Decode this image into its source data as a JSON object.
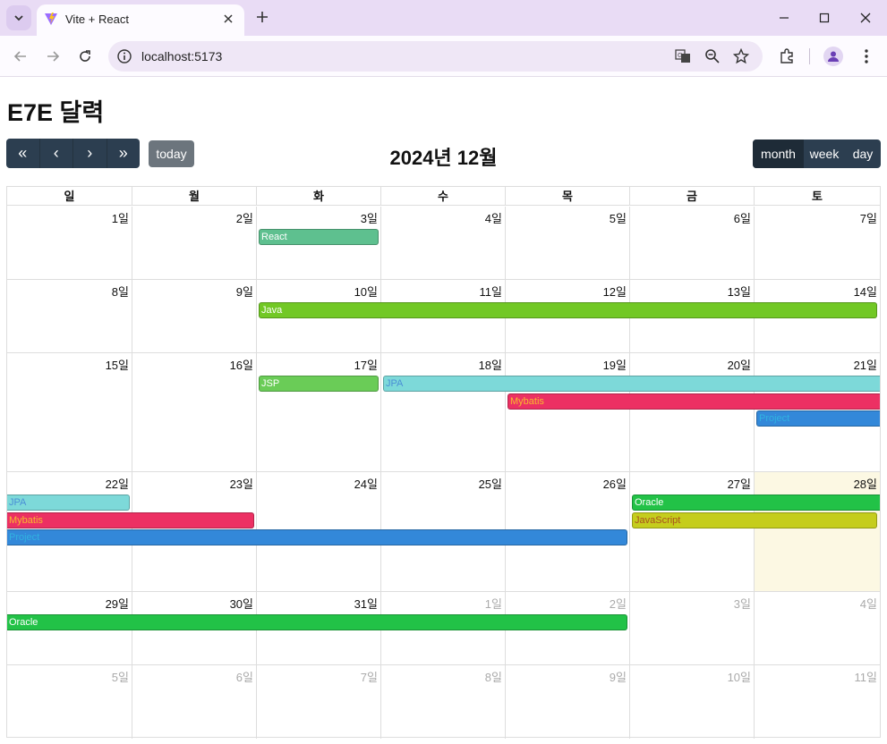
{
  "browser": {
    "tab_title": "Vite + React",
    "url": "localhost:5173",
    "icons": [
      "tab-search-icon",
      "vite-favicon",
      "close-icon",
      "plus-icon",
      "minimize-icon",
      "maximize-icon",
      "window-close-icon",
      "back-icon",
      "forward-icon",
      "reload-icon",
      "site-info-icon",
      "translate-icon",
      "zoom-icon",
      "bookmark-star-icon",
      "extensions-icon",
      "profile-icon",
      "more-menu-icon"
    ]
  },
  "page": {
    "title": "E7E 달력"
  },
  "toolbar": {
    "prev_year": "«",
    "prev": "‹",
    "next": "›",
    "next_year": "»",
    "today_label": "today",
    "title": "2024년 12월",
    "views": [
      {
        "label": "month",
        "active": true
      },
      {
        "label": "week",
        "active": false
      },
      {
        "label": "day",
        "active": false
      }
    ]
  },
  "calendar": {
    "day_headers": [
      "일",
      "월",
      "화",
      "수",
      "목",
      "금",
      "토"
    ],
    "weeks": [
      [
        "1일",
        "2일",
        "3일",
        "4일",
        "5일",
        "6일",
        "7일"
      ],
      [
        "8일",
        "9일",
        "10일",
        "11일",
        "12일",
        "13일",
        "14일"
      ],
      [
        "15일",
        "16일",
        "17일",
        "18일",
        "19일",
        "20일",
        "21일"
      ],
      [
        "22일",
        "23일",
        "24일",
        "25일",
        "26일",
        "27일",
        "28일"
      ],
      [
        "29일",
        "30일",
        "31일",
        "1일",
        "2일",
        "3일",
        "4일"
      ],
      [
        "5일",
        "6일",
        "7일",
        "8일",
        "9일",
        "10일",
        "11일"
      ]
    ],
    "other_month": [
      [
        false,
        false,
        false,
        false,
        false,
        false,
        false
      ],
      [
        false,
        false,
        false,
        false,
        false,
        false,
        false
      ],
      [
        false,
        false,
        false,
        false,
        false,
        false,
        false
      ],
      [
        false,
        false,
        false,
        false,
        false,
        false,
        false
      ],
      [
        false,
        false,
        false,
        true,
        true,
        true,
        true
      ],
      [
        true,
        true,
        true,
        true,
        true,
        true,
        true
      ]
    ],
    "today": {
      "week": 3,
      "day": 6
    },
    "events": [
      {
        "title": "React",
        "week": 0,
        "start": 2,
        "end": 2,
        "lane": 0,
        "bg": "#5ec08f",
        "fg": "#ffffff"
      },
      {
        "title": "Java",
        "week": 1,
        "start": 2,
        "end": 6,
        "lane": 0,
        "bg": "#72c825",
        "fg": "#ffffff"
      },
      {
        "title": "JSP",
        "week": 2,
        "start": 2,
        "end": 2,
        "lane": 0,
        "bg": "#6acc57",
        "fg": "#ffffff"
      },
      {
        "title": "JPA",
        "week": 2,
        "start": 3,
        "end": 6,
        "lane": 0,
        "bg": "#7dd9d9",
        "fg": "#4a8fd6",
        "contRight": true
      },
      {
        "title": "Mybatis",
        "week": 2,
        "start": 4,
        "end": 6,
        "lane": 1,
        "bg": "#ec3063",
        "fg": "#f7b92e",
        "contRight": true
      },
      {
        "title": "Project",
        "week": 2,
        "start": 6,
        "end": 6,
        "lane": 2,
        "bg": "#3388d9",
        "fg": "#30b2e0",
        "contRight": true
      },
      {
        "title": "JPA",
        "week": 3,
        "start": 0,
        "end": 0,
        "lane": 0,
        "bg": "#7dd9d9",
        "fg": "#4a8fd6",
        "contLeft": true
      },
      {
        "title": "Mybatis",
        "week": 3,
        "start": 0,
        "end": 1,
        "lane": 1,
        "bg": "#ec3063",
        "fg": "#f7b92e",
        "contLeft": true
      },
      {
        "title": "Project",
        "week": 3,
        "start": 0,
        "end": 4,
        "lane": 2,
        "bg": "#3388d9",
        "fg": "#30b2e0",
        "contLeft": true
      },
      {
        "title": "Oracle",
        "week": 3,
        "start": 5,
        "end": 6,
        "lane": 0,
        "bg": "#22c247",
        "fg": "#ffffff",
        "contRight": true
      },
      {
        "title": "JavaScript",
        "week": 3,
        "start": 5,
        "end": 6,
        "lane": 1,
        "bg": "#c5cd1c",
        "fg": "#a8521e"
      },
      {
        "title": "Oracle",
        "week": 4,
        "start": 0,
        "end": 4,
        "lane": 0,
        "bg": "#22c247",
        "fg": "#ffffff",
        "contLeft": true
      }
    ]
  }
}
